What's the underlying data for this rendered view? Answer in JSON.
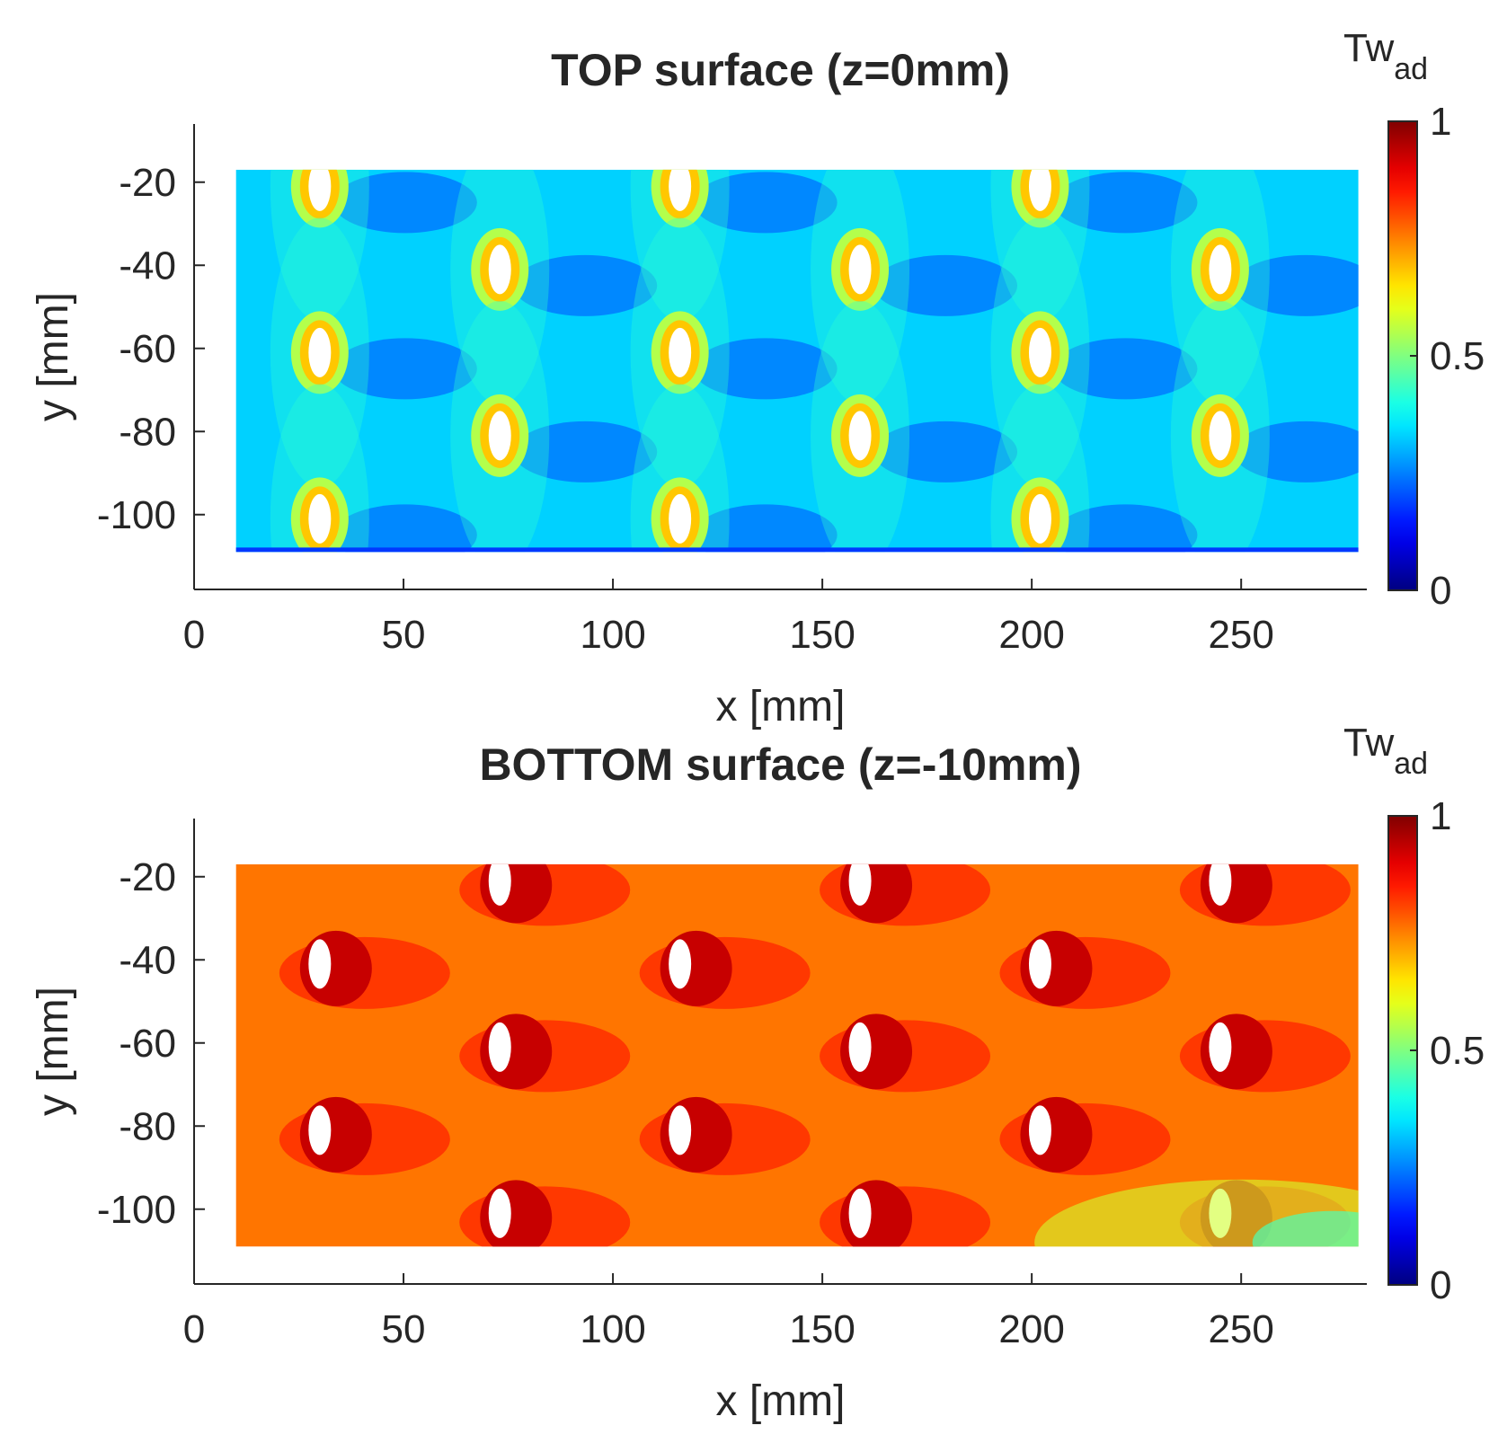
{
  "chart_data": [
    {
      "type": "heatmap",
      "title": "TOP surface (z=0mm)",
      "xlabel": "x [mm]",
      "ylabel": "y [mm]",
      "xlim": [
        0,
        280
      ],
      "ylim": [
        -118,
        -6
      ],
      "data_extent": {
        "x": [
          10,
          278
        ],
        "y": [
          -109,
          -17
        ]
      },
      "xticks": [
        0,
        50,
        100,
        150,
        200,
        250
      ],
      "xtick_labels": [
        "0",
        "50",
        "100",
        "150",
        "200",
        "250"
      ],
      "yticks": [
        -20,
        -40,
        -60,
        -80,
        -100
      ],
      "ytick_labels": [
        "-20",
        "-40",
        "-60",
        "-80",
        "-100"
      ],
      "colorbar": {
        "label": "Tw",
        "label_sub": "ad",
        "range": [
          0,
          1
        ],
        "ticks": [
          0,
          0.5,
          1
        ],
        "tick_labels": [
          "0",
          "0.5",
          "1"
        ],
        "colormap": "jet"
      },
      "background_value": 0.33,
      "holes": [
        {
          "x": 30,
          "y": -21
        },
        {
          "x": 30,
          "y": -61
        },
        {
          "x": 30,
          "y": -101
        },
        {
          "x": 73,
          "y": -41
        },
        {
          "x": 73,
          "y": -81
        },
        {
          "x": 116,
          "y": -21
        },
        {
          "x": 116,
          "y": -61
        },
        {
          "x": 116,
          "y": -101
        },
        {
          "x": 159,
          "y": -41
        },
        {
          "x": 159,
          "y": -81
        },
        {
          "x": 202,
          "y": -21
        },
        {
          "x": 202,
          "y": -61
        },
        {
          "x": 202,
          "y": -101
        },
        {
          "x": 245,
          "y": -41
        },
        {
          "x": 245,
          "y": -81
        }
      ]
    },
    {
      "type": "heatmap",
      "title": "BOTTOM surface (z=-10mm)",
      "xlabel": "x [mm]",
      "ylabel": "y [mm]",
      "xlim": [
        0,
        280
      ],
      "ylim": [
        -118,
        -6
      ],
      "data_extent": {
        "x": [
          10,
          278
        ],
        "y": [
          -109,
          -17
        ]
      },
      "xticks": [
        0,
        50,
        100,
        150,
        200,
        250
      ],
      "xtick_labels": [
        "0",
        "50",
        "100",
        "150",
        "200",
        "250"
      ],
      "yticks": [
        -20,
        -40,
        -60,
        -80,
        -100
      ],
      "ytick_labels": [
        "-20",
        "-40",
        "-60",
        "-80",
        "-100"
      ],
      "colorbar": {
        "label": "Tw",
        "label_sub": "ad",
        "range": [
          0,
          1
        ],
        "ticks": [
          0,
          0.5,
          1
        ],
        "tick_labels": [
          "0",
          "0.5",
          "1"
        ],
        "colormap": "jet"
      },
      "background_value": 0.76,
      "holes": [
        {
          "x": 73,
          "y": -21
        },
        {
          "x": 73,
          "y": -61
        },
        {
          "x": 73,
          "y": -101
        },
        {
          "x": 159,
          "y": -21
        },
        {
          "x": 159,
          "y": -61
        },
        {
          "x": 159,
          "y": -101
        },
        {
          "x": 245,
          "y": -21
        },
        {
          "x": 245,
          "y": -61
        },
        {
          "x": 245,
          "y": -101
        },
        {
          "x": 30,
          "y": -41
        },
        {
          "x": 30,
          "y": -81
        },
        {
          "x": 116,
          "y": -41
        },
        {
          "x": 116,
          "y": -81
        },
        {
          "x": 202,
          "y": -41
        },
        {
          "x": 202,
          "y": -81
        }
      ]
    }
  ]
}
